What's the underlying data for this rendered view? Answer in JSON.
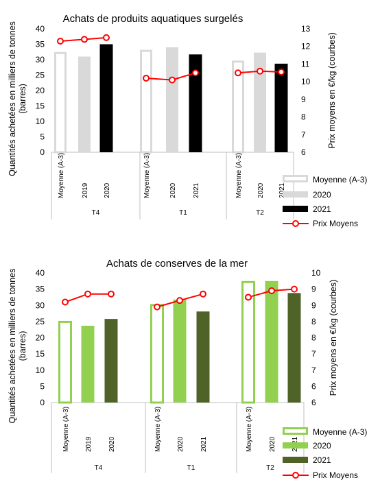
{
  "chart_data": [
    {
      "type": "bar",
      "title": "Achats de produits aquatiques surgelés",
      "ylabel": "Quantités achetées en milliers de tonnes (barres)",
      "y2label": "Prix moyens en €/kg (courbes)",
      "ylim": [
        0,
        40
      ],
      "y2lim": [
        6,
        13
      ],
      "yticks": [
        0,
        5,
        10,
        15,
        20,
        25,
        30,
        35,
        40
      ],
      "y2ticks": [
        6,
        7,
        8,
        9,
        10,
        11,
        12,
        13
      ],
      "grid": false,
      "legend_position": "bottom-right",
      "groups": [
        {
          "name": "T4",
          "categories": [
            "Moyenne (A-3)",
            "2019",
            "2020"
          ],
          "series_keys": [
            "avg",
            "mid",
            "cur"
          ],
          "values": [
            32.5,
            31,
            35
          ],
          "prices": [
            12.3,
            12.4,
            12.5
          ]
        },
        {
          "name": "T1",
          "categories": [
            "Moyenne (A-3)",
            "2020",
            "2021"
          ],
          "series_keys": [
            "avg",
            "mid",
            "cur"
          ],
          "values": [
            33.2,
            34,
            31.7
          ],
          "prices": [
            10.2,
            10.1,
            10.5
          ]
        },
        {
          "name": "T2",
          "categories": [
            "Moyenne (A-3)",
            "2020",
            "2021"
          ],
          "series_keys": [
            "avg",
            "mid",
            "cur"
          ],
          "values": [
            29.7,
            32.3,
            28.7
          ],
          "prices": [
            10.5,
            10.6,
            10.55
          ]
        }
      ],
      "legend": [
        {
          "key": "avg",
          "label": "Moyenne (A-3)"
        },
        {
          "key": "mid",
          "label": "2020"
        },
        {
          "key": "cur",
          "label": "2021"
        },
        {
          "key": "price",
          "label": "Prix Moyens"
        }
      ],
      "colors": {
        "avg": "#d9d9d9",
        "mid": "#d9d9d9",
        "cur": "#000000",
        "price": "#ff0000",
        "axis": "#bfbfbf"
      }
    },
    {
      "type": "bar",
      "title": "Achats de conserves de la mer",
      "ylabel": "Quantités achetées en milliers de tonnes (barres)",
      "y2label": "Prix moyens en €/kg (courbes)",
      "ylim": [
        0,
        40
      ],
      "y2lim": [
        6,
        10
      ],
      "yticks": [
        0,
        5,
        10,
        15,
        20,
        25,
        30,
        35,
        40
      ],
      "y2ticks": [
        6,
        6.5,
        7,
        7.5,
        8,
        8.5,
        9,
        9.5,
        10
      ],
      "y2ticklabels": [
        "6",
        "6",
        "7",
        "7",
        "8",
        "8",
        "9",
        "9",
        "10"
      ],
      "grid": false,
      "legend_position": "bottom-right",
      "groups": [
        {
          "name": "T4",
          "categories": [
            "Moyenne (A-3)",
            "2019",
            "2020"
          ],
          "series_keys": [
            "avg",
            "mid",
            "cur"
          ],
          "values": [
            25.2,
            23.7,
            25.8
          ],
          "prices": [
            9.1,
            9.35,
            9.35
          ]
        },
        {
          "name": "T1",
          "categories": [
            "Moyenne (A-3)",
            "2020",
            "2021"
          ],
          "series_keys": [
            "avg",
            "mid",
            "cur"
          ],
          "values": [
            30.4,
            31.8,
            28.1
          ],
          "prices": [
            8.95,
            9.15,
            9.35
          ]
        },
        {
          "name": "T2",
          "categories": [
            "Moyenne (A-3)",
            "2020",
            "2021"
          ],
          "series_keys": [
            "avg",
            "mid",
            "cur"
          ],
          "values": [
            37.5,
            37.5,
            33.8
          ],
          "prices": [
            9.25,
            9.45,
            9.5
          ]
        }
      ],
      "legend": [
        {
          "key": "avg",
          "label": "Moyenne (A-3)"
        },
        {
          "key": "mid",
          "label": "2020"
        },
        {
          "key": "cur",
          "label": "2021"
        },
        {
          "key": "price",
          "label": "Prix Moyens"
        }
      ],
      "colors": {
        "avg": "#92d050",
        "mid": "#92d050",
        "cur": "#4f6228",
        "price": "#ff0000",
        "axis": "#bfbfbf"
      }
    }
  ]
}
